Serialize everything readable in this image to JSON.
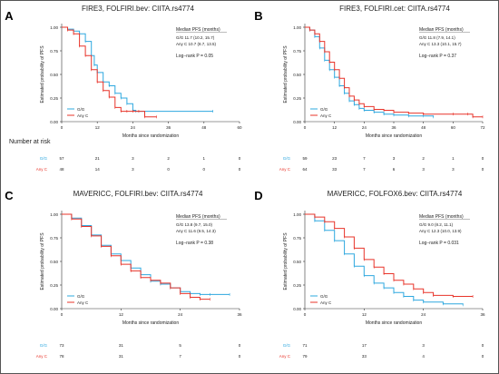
{
  "colors": {
    "gg": "#2ea8df",
    "anyc": "#e8342a",
    "axis": "#333333",
    "text": "#222222"
  },
  "chart_data": [
    {
      "type": "line",
      "panel_letter": "A",
      "title": "FIRE3, FOLFIRI.bev: CIITA.rs4774",
      "xlabel": "Months since randomization",
      "ylabel": "Estimated probability of PFS",
      "xlim": [
        0,
        60
      ],
      "ylim": [
        0,
        1
      ],
      "xticks": [
        "0",
        "12",
        "24",
        "36",
        "48",
        "60"
      ],
      "yticks": [
        "0.00",
        "0.25",
        "0.50",
        "0.75",
        "1.00"
      ],
      "stats_title": "Median PFS (months)",
      "stats_lines": [
        "G/G   11.7 (10.2, 15.7)",
        "Any C  10.7 (8.7, 13.5)"
      ],
      "logrank": "Log−rank P = 0.05",
      "legend": [
        "G/G",
        "Any C"
      ],
      "risk_title": "Number at risk",
      "risk_times": [
        0,
        12,
        24,
        36,
        48,
        60
      ],
      "series": [
        {
          "name": "G/G",
          "color_key": "gg",
          "points": [
            [
              0,
              1
            ],
            [
              2,
              0.98
            ],
            [
              4,
              0.96
            ],
            [
              6,
              0.93
            ],
            [
              8,
              0.85
            ],
            [
              10,
              0.7
            ],
            [
              11,
              0.6
            ],
            [
              12,
              0.52
            ],
            [
              14,
              0.42
            ],
            [
              16,
              0.38
            ],
            [
              18,
              0.3
            ],
            [
              20,
              0.25
            ],
            [
              22,
              0.19
            ],
            [
              24,
              0.12
            ],
            [
              25,
              0.11
            ],
            [
              51,
              0.11
            ]
          ],
          "risk": [
            57,
            21,
            3,
            2,
            1,
            0
          ]
        },
        {
          "name": "Any C",
          "color_key": "anyc",
          "points": [
            [
              0,
              1
            ],
            [
              2,
              0.97
            ],
            [
              4,
              0.93
            ],
            [
              6,
              0.8
            ],
            [
              8,
              0.7
            ],
            [
              10,
              0.55
            ],
            [
              12,
              0.42
            ],
            [
              14,
              0.33
            ],
            [
              16,
              0.26
            ],
            [
              18,
              0.15
            ],
            [
              20,
              0.11
            ],
            [
              22,
              0.11
            ],
            [
              24,
              0.11
            ],
            [
              26,
              0.11
            ],
            [
              28,
              0.05
            ],
            [
              32,
              0.05
            ]
          ],
          "risk": [
            48,
            14,
            3,
            0,
            0,
            0
          ]
        }
      ]
    },
    {
      "type": "line",
      "panel_letter": "B",
      "title": "FIRE3, FOLFIRI.cet: CIITA.rs4774",
      "xlabel": "Months since randomization",
      "ylabel": "Estimated probability of PFS",
      "xlim": [
        0,
        72
      ],
      "ylim": [
        0,
        1
      ],
      "xticks": [
        "0",
        "12",
        "24",
        "36",
        "48",
        "60",
        "72"
      ],
      "yticks": [
        "0.00",
        "0.25",
        "0.50",
        "0.75",
        "1.00"
      ],
      "stats_title": "Median PFS (months)",
      "stats_lines": [
        "G/G   11.8 (7.9, 14.1)",
        "Any C  13.3 (10.1, 15.7)"
      ],
      "logrank": "Log−rank P = 0.37",
      "legend": [
        "G/G",
        "Any C"
      ],
      "risk_title": "",
      "risk_times": [
        0,
        12,
        24,
        36,
        48,
        60,
        72
      ],
      "series": [
        {
          "name": "G/G",
          "color_key": "gg",
          "points": [
            [
              0,
              1
            ],
            [
              2,
              0.97
            ],
            [
              4,
              0.9
            ],
            [
              6,
              0.78
            ],
            [
              8,
              0.65
            ],
            [
              10,
              0.55
            ],
            [
              12,
              0.47
            ],
            [
              14,
              0.38
            ],
            [
              16,
              0.3
            ],
            [
              18,
              0.22
            ],
            [
              20,
              0.18
            ],
            [
              22,
              0.14
            ],
            [
              24,
              0.12
            ],
            [
              28,
              0.1
            ],
            [
              32,
              0.08
            ],
            [
              36,
              0.07
            ],
            [
              42,
              0.06
            ],
            [
              48,
              0.06
            ],
            [
              52,
              0.05
            ]
          ],
          "risk": [
            59,
            23,
            7,
            3,
            2,
            1,
            0
          ]
        },
        {
          "name": "Any C",
          "color_key": "anyc",
          "points": [
            [
              0,
              1
            ],
            [
              2,
              0.97
            ],
            [
              4,
              0.93
            ],
            [
              6,
              0.85
            ],
            [
              8,
              0.74
            ],
            [
              10,
              0.63
            ],
            [
              12,
              0.55
            ],
            [
              14,
              0.46
            ],
            [
              16,
              0.36
            ],
            [
              18,
              0.27
            ],
            [
              20,
              0.23
            ],
            [
              22,
              0.19
            ],
            [
              24,
              0.16
            ],
            [
              28,
              0.13
            ],
            [
              32,
              0.12
            ],
            [
              36,
              0.1
            ],
            [
              42,
              0.09
            ],
            [
              48,
              0.08
            ],
            [
              60,
              0.08
            ],
            [
              66,
              0.08
            ],
            [
              68,
              0.05
            ],
            [
              72,
              0.05
            ]
          ],
          "risk": [
            64,
            33,
            7,
            6,
            3,
            3,
            0
          ]
        }
      ]
    },
    {
      "type": "line",
      "panel_letter": "C",
      "title": "MAVERICC, FOLFIRI.bev: CIITA.rs4774",
      "xlabel": "Months since randomization",
      "ylabel": "Estimated probability of PFS",
      "xlim": [
        0,
        36
      ],
      "ylim": [
        0,
        1
      ],
      "xticks": [
        "0",
        "12",
        "24",
        "36"
      ],
      "yticks": [
        "0.00",
        "0.25",
        "0.50",
        "0.75",
        "1.00"
      ],
      "stats_title": "Median PFS (months)",
      "stats_lines": [
        "G/G   13.8 (9.7, 15.0)",
        "Any C  11.6 (9.5, 14.3)"
      ],
      "logrank": "Log−rank P = 0.38",
      "legend": [
        "G/G",
        "Any C"
      ],
      "risk_title": "",
      "risk_times": [
        0,
        12,
        24,
        36
      ],
      "series": [
        {
          "name": "G/G",
          "color_key": "gg",
          "points": [
            [
              0,
              1
            ],
            [
              2,
              0.96
            ],
            [
              4,
              0.88
            ],
            [
              6,
              0.78
            ],
            [
              8,
              0.67
            ],
            [
              10,
              0.58
            ],
            [
              12,
              0.51
            ],
            [
              14,
              0.43
            ],
            [
              16,
              0.36
            ],
            [
              18,
              0.29
            ],
            [
              20,
              0.26
            ],
            [
              22,
              0.22
            ],
            [
              24,
              0.18
            ],
            [
              26,
              0.16
            ],
            [
              28,
              0.15
            ],
            [
              30,
              0.15
            ],
            [
              34,
              0.15
            ]
          ],
          "risk": [
            73,
            31,
            5,
            0
          ]
        },
        {
          "name": "Any C",
          "color_key": "anyc",
          "points": [
            [
              0,
              1
            ],
            [
              2,
              0.95
            ],
            [
              4,
              0.87
            ],
            [
              6,
              0.77
            ],
            [
              8,
              0.66
            ],
            [
              10,
              0.56
            ],
            [
              12,
              0.47
            ],
            [
              14,
              0.4
            ],
            [
              16,
              0.33
            ],
            [
              18,
              0.3
            ],
            [
              20,
              0.27
            ],
            [
              22,
              0.22
            ],
            [
              24,
              0.16
            ],
            [
              26,
              0.12
            ],
            [
              28,
              0.1
            ],
            [
              30,
              0.1
            ]
          ],
          "risk": [
            78,
            31,
            7,
            0
          ]
        }
      ]
    },
    {
      "type": "line",
      "panel_letter": "D",
      "title": "MAVERICC, FOLFOX6.bev: CIITA.rs4774",
      "xlabel": "Months since randomization",
      "ylabel": "Estimated probability of PFS",
      "xlim": [
        0,
        36
      ],
      "ylim": [
        0,
        1
      ],
      "xticks": [
        "0",
        "12",
        "24",
        "36"
      ],
      "yticks": [
        "0.00",
        "0.25",
        "0.50",
        "0.75",
        "1.00"
      ],
      "stats_title": "Median PFS (months)",
      "stats_lines": [
        "G/G   9.0 (8.2, 11.1)",
        "Any C  12.3 (10.0, 13.9)"
      ],
      "logrank": "Log−rank P = 0.031",
      "legend": [
        "G/G",
        "Any C"
      ],
      "risk_title": "",
      "risk_times": [
        0,
        12,
        24,
        36
      ],
      "series": [
        {
          "name": "G/G",
          "color_key": "gg",
          "points": [
            [
              0,
              1
            ],
            [
              2,
              0.93
            ],
            [
              4,
              0.83
            ],
            [
              6,
              0.72
            ],
            [
              8,
              0.58
            ],
            [
              10,
              0.45
            ],
            [
              12,
              0.35
            ],
            [
              14,
              0.27
            ],
            [
              16,
              0.22
            ],
            [
              18,
              0.17
            ],
            [
              20,
              0.13
            ],
            [
              22,
              0.09
            ],
            [
              24,
              0.07
            ],
            [
              28,
              0.05
            ],
            [
              32,
              0.04
            ]
          ],
          "risk": [
            71,
            17,
            3,
            0
          ]
        },
        {
          "name": "Any C",
          "color_key": "anyc",
          "points": [
            [
              0,
              1
            ],
            [
              2,
              0.97
            ],
            [
              4,
              0.92
            ],
            [
              6,
              0.85
            ],
            [
              8,
              0.76
            ],
            [
              10,
              0.64
            ],
            [
              12,
              0.52
            ],
            [
              14,
              0.44
            ],
            [
              16,
              0.37
            ],
            [
              18,
              0.3
            ],
            [
              20,
              0.26
            ],
            [
              22,
              0.21
            ],
            [
              24,
              0.17
            ],
            [
              26,
              0.14
            ],
            [
              30,
              0.13
            ],
            [
              34,
              0.13
            ]
          ],
          "risk": [
            79,
            33,
            4,
            0
          ]
        }
      ]
    }
  ]
}
